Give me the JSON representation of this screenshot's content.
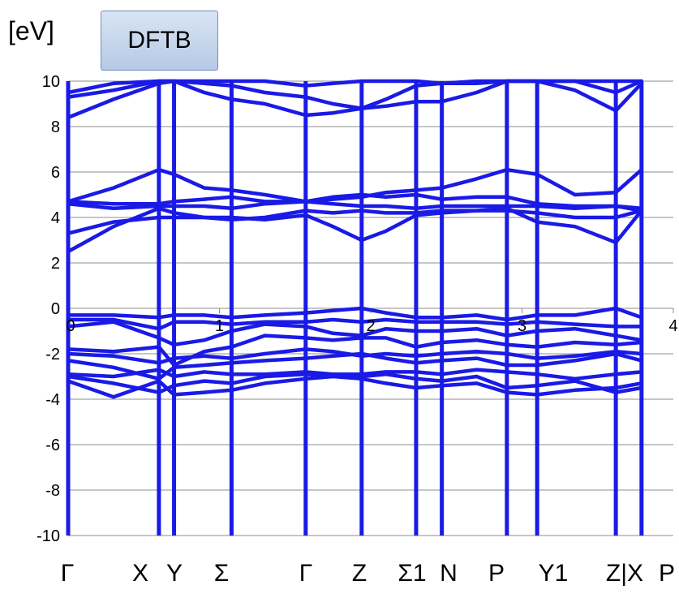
{
  "header": {
    "unit_label": "[eV]",
    "method_badge": "DFTB"
  },
  "kpath_labels": [
    "Γ",
    "X",
    "Y",
    "Σ",
    "Γ",
    "Z",
    "Σ1",
    "N",
    "P",
    "Y1",
    "Z|X",
    "P"
  ],
  "chart_data": {
    "type": "line",
    "title": "",
    "xlabel": "",
    "ylabel": "[eV]",
    "xlim": [
      0,
      4
    ],
    "ylim": [
      -10,
      10
    ],
    "x_ticks": [
      0,
      1,
      2,
      3,
      4
    ],
    "x_tick_labels": [
      "0",
      "1",
      "2",
      "3",
      "4"
    ],
    "y_ticks": [
      -10,
      -8,
      -6,
      -4,
      -2,
      0,
      2,
      4,
      6,
      8,
      10
    ],
    "y_tick_labels": [
      "-10",
      "-8",
      "-6",
      "-4",
      "-2",
      "0",
      "2",
      "4",
      "6",
      "8",
      "10"
    ],
    "grid": "horizontal",
    "line_color": "#1a1ae6",
    "kpoint_x": [
      0,
      0.6,
      0.7,
      1.08,
      1.57,
      1.94,
      2.3,
      2.47,
      2.9,
      3.1,
      3.62,
      3.79
    ],
    "x": [
      0,
      0.3,
      0.6,
      0.7,
      0.9,
      1.08,
      1.3,
      1.57,
      1.75,
      1.94,
      2.1,
      2.3,
      2.47,
      2.7,
      2.9,
      3.1,
      3.35,
      3.62,
      3.79
    ],
    "series": [
      {
        "values": [
          -3.2,
          -3.9,
          -3.2,
          -3.8,
          -3.7,
          -3.6,
          -3.3,
          -3.1,
          -3.0,
          -3.1,
          -3.3,
          -3.5,
          -3.4,
          -3.3,
          -3.7,
          -3.8,
          -3.6,
          -3.5,
          -3.3
        ]
      },
      {
        "values": [
          -3.0,
          -3.3,
          -3.7,
          -3.4,
          -3.2,
          -3.3,
          -3.0,
          -2.9,
          -3.0,
          -3.0,
          -2.9,
          -3.1,
          -3.2,
          -3.0,
          -3.5,
          -3.4,
          -3.2,
          -3.7,
          -3.5
        ]
      },
      {
        "values": [
          -2.9,
          -3.0,
          -2.7,
          -3.0,
          -2.8,
          -2.9,
          -2.9,
          -2.8,
          -2.9,
          -2.9,
          -2.8,
          -2.8,
          -2.9,
          -2.7,
          -2.8,
          -2.9,
          -3.1,
          -2.9,
          -2.8
        ]
      },
      {
        "values": [
          -2.3,
          -2.6,
          -3.1,
          -2.6,
          -2.5,
          -2.4,
          -2.3,
          -2.2,
          -2.1,
          -2.0,
          -2.2,
          -2.4,
          -2.3,
          -2.2,
          -2.5,
          -2.5,
          -2.3,
          -2.0,
          -2.3
        ]
      },
      {
        "values": [
          -2.0,
          -2.1,
          -2.4,
          -2.2,
          -2.1,
          -2.2,
          -2.0,
          -1.8,
          -1.9,
          -2.1,
          -2.0,
          -2.1,
          -2.0,
          -1.9,
          -2.0,
          -2.2,
          -2.1,
          -1.9,
          -2.0
        ]
      },
      {
        "values": [
          -1.8,
          -1.9,
          -1.7,
          -2.5,
          -1.9,
          -1.7,
          -1.2,
          -1.3,
          -1.4,
          -1.3,
          -1.3,
          -1.7,
          -1.5,
          -1.4,
          -1.6,
          -1.7,
          -1.5,
          -1.6,
          -1.5
        ]
      },
      {
        "values": [
          -0.8,
          -0.6,
          -1.3,
          -1.6,
          -1.4,
          -1.0,
          -0.7,
          -0.8,
          -1.1,
          -1.2,
          -0.9,
          -1.0,
          -1.0,
          -0.9,
          -1.2,
          -1.0,
          -0.9,
          -1.2,
          -1.4
        ]
      },
      {
        "values": [
          -0.5,
          -0.5,
          -0.9,
          -0.6,
          -0.6,
          -0.7,
          -0.6,
          -0.6,
          -0.5,
          -0.6,
          -0.5,
          -0.6,
          -0.6,
          -0.6,
          -0.7,
          -0.6,
          -0.7,
          -0.8,
          -0.8
        ]
      },
      {
        "values": [
          -0.3,
          -0.3,
          -0.4,
          -0.3,
          -0.3,
          -0.4,
          -0.3,
          -0.2,
          -0.1,
          0.0,
          -0.2,
          -0.4,
          -0.4,
          -0.3,
          -0.5,
          -0.3,
          -0.3,
          0.0,
          -0.4
        ]
      },
      {
        "values": [
          2.5,
          3.6,
          4.4,
          4.2,
          4.0,
          4.0,
          3.9,
          4.1,
          3.6,
          3.0,
          3.4,
          4.1,
          4.2,
          4.3,
          4.4,
          3.8,
          3.6,
          2.9,
          4.3
        ]
      },
      {
        "values": [
          3.3,
          3.8,
          4.0,
          4.0,
          4.0,
          3.9,
          4.0,
          4.3,
          4.2,
          4.3,
          4.2,
          4.2,
          4.3,
          4.3,
          4.3,
          4.2,
          4.0,
          4.0,
          4.3
        ]
      },
      {
        "values": [
          4.6,
          4.4,
          4.5,
          4.5,
          4.5,
          4.4,
          4.6,
          4.7,
          4.6,
          4.5,
          4.5,
          4.4,
          4.5,
          4.5,
          4.5,
          4.5,
          4.4,
          4.5,
          4.4
        ]
      },
      {
        "values": [
          4.7,
          4.6,
          4.6,
          4.7,
          4.8,
          4.9,
          4.7,
          4.7,
          4.9,
          5.0,
          4.9,
          5.0,
          4.8,
          4.9,
          4.9,
          4.6,
          4.5,
          4.5,
          4.3
        ]
      },
      {
        "values": [
          4.7,
          5.3,
          6.1,
          5.9,
          5.3,
          5.2,
          5.0,
          4.7,
          4.8,
          4.9,
          5.1,
          5.2,
          5.3,
          5.7,
          6.1,
          5.9,
          5.0,
          5.1,
          6.1
        ]
      },
      {
        "values": [
          8.4,
          9.2,
          9.9,
          10.0,
          9.5,
          9.2,
          9.0,
          8.5,
          8.6,
          8.8,
          8.9,
          9.1,
          9.1,
          9.5,
          10.0,
          10.0,
          9.6,
          8.7,
          9.9
        ]
      },
      {
        "values": [
          9.3,
          9.6,
          10.0,
          10.0,
          9.9,
          9.8,
          9.5,
          9.3,
          9.0,
          8.8,
          9.2,
          9.8,
          9.9,
          9.9,
          10.0,
          10.0,
          10.0,
          9.5,
          10.0
        ]
      },
      {
        "values": [
          9.5,
          9.9,
          10.0,
          10.0,
          10.0,
          10.0,
          10.0,
          9.8,
          9.9,
          10.0,
          10.0,
          10.0,
          9.9,
          10.0,
          10.0,
          10.0,
          10.0,
          10.0,
          10.0
        ]
      }
    ]
  }
}
